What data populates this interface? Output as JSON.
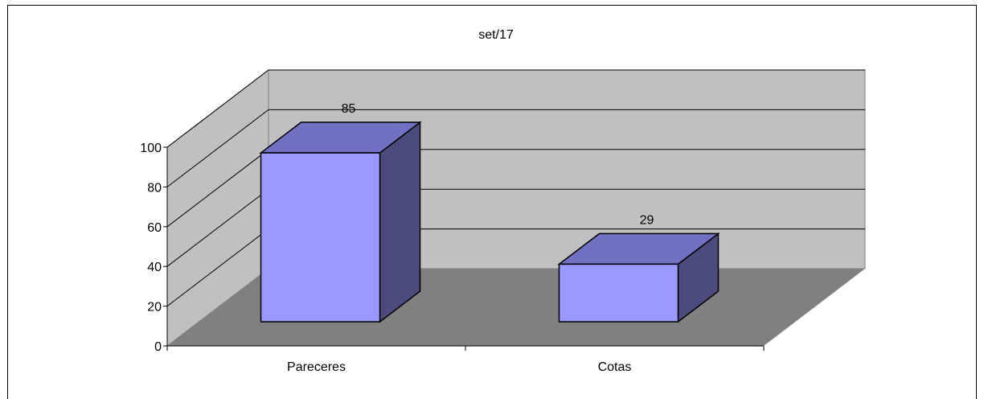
{
  "chart_data": {
    "type": "bar",
    "title": "set/17",
    "categories": [
      "Pareceres",
      "Cotas"
    ],
    "values": [
      85,
      29
    ],
    "data_labels": [
      "85",
      "29"
    ],
    "ylim": [
      0,
      100
    ],
    "yticks": [
      "0",
      "20",
      "40",
      "60",
      "80",
      "100"
    ],
    "xlabel": "",
    "ylabel": "",
    "grid": true,
    "legend": "none",
    "style": "3d-column",
    "colors": {
      "bar_front": "#9999ff",
      "bar_top": "#7171c4",
      "bar_side": "#4b4b7d",
      "back_wall": "#c0c0c0",
      "side_wall": "#c0c0c0",
      "floor": "#808080"
    }
  }
}
